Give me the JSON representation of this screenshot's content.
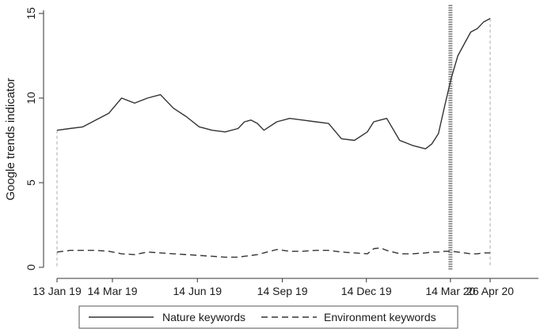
{
  "chart_data": {
    "type": "line",
    "title": "",
    "xlabel": "",
    "ylabel": "Google trends indicator",
    "ylim": [
      0,
      15
    ],
    "yticks": [
      "0",
      "5",
      "10",
      "15"
    ],
    "xticks": [
      "13 Jan 19",
      "14 Mar 19",
      "14 Jun 19",
      "14 Sep 19",
      "14 Dec 19",
      "14 Mar 20",
      "26 Apr 20"
    ],
    "x": [
      "2019-01-13",
      "2019-01-27",
      "2019-02-10",
      "2019-02-24",
      "2019-03-10",
      "2019-03-24",
      "2019-04-07",
      "2019-04-21",
      "2019-05-05",
      "2019-05-19",
      "2019-06-02",
      "2019-06-16",
      "2019-06-30",
      "2019-07-14",
      "2019-07-28",
      "2019-08-04",
      "2019-08-11",
      "2019-08-18",
      "2019-08-25",
      "2019-09-08",
      "2019-09-22",
      "2019-10-06",
      "2019-10-20",
      "2019-11-03",
      "2019-11-17",
      "2019-12-01",
      "2019-12-15",
      "2019-12-22",
      "2019-12-29",
      "2020-01-05",
      "2020-01-19",
      "2020-02-02",
      "2020-02-16",
      "2020-02-23",
      "2020-03-01",
      "2020-03-08",
      "2020-03-15",
      "2020-03-22",
      "2020-03-29",
      "2020-04-05",
      "2020-04-12",
      "2020-04-19",
      "2020-04-26"
    ],
    "series": [
      {
        "name": "Nature keywords",
        "style": "solid",
        "values": [
          8.1,
          8.2,
          8.3,
          8.7,
          9.1,
          10.0,
          9.7,
          10.0,
          10.2,
          9.4,
          8.9,
          8.3,
          8.1,
          8.0,
          8.2,
          8.6,
          8.7,
          8.5,
          8.1,
          8.6,
          8.8,
          8.7,
          8.6,
          8.5,
          7.6,
          7.5,
          8.0,
          8.6,
          8.7,
          8.8,
          7.5,
          7.2,
          7.0,
          7.3,
          7.9,
          9.6,
          11.2,
          12.5,
          13.2,
          13.9,
          14.1,
          14.5,
          14.7
        ]
      },
      {
        "name": "Environment keywords",
        "style": "dashed",
        "values": [
          0.9,
          1.0,
          1.0,
          1.0,
          0.95,
          0.8,
          0.75,
          0.9,
          0.85,
          0.8,
          0.75,
          0.7,
          0.65,
          0.6,
          0.6,
          0.65,
          0.7,
          0.75,
          0.85,
          1.05,
          0.95,
          0.95,
          1.0,
          1.0,
          0.9,
          0.85,
          0.8,
          1.1,
          1.15,
          1.0,
          0.8,
          0.8,
          0.85,
          0.9,
          0.9,
          0.95,
          0.95,
          0.9,
          0.85,
          0.8,
          0.8,
          0.85,
          0.85
        ]
      }
    ],
    "reference_lines": [
      "2019-01-13",
      "2019-03-14",
      "2019-06-14",
      "2019-09-14",
      "2019-12-14",
      "2020-04-26"
    ],
    "highlight_line": "2020-03-14",
    "grid": false,
    "legend_position": "bottom"
  }
}
